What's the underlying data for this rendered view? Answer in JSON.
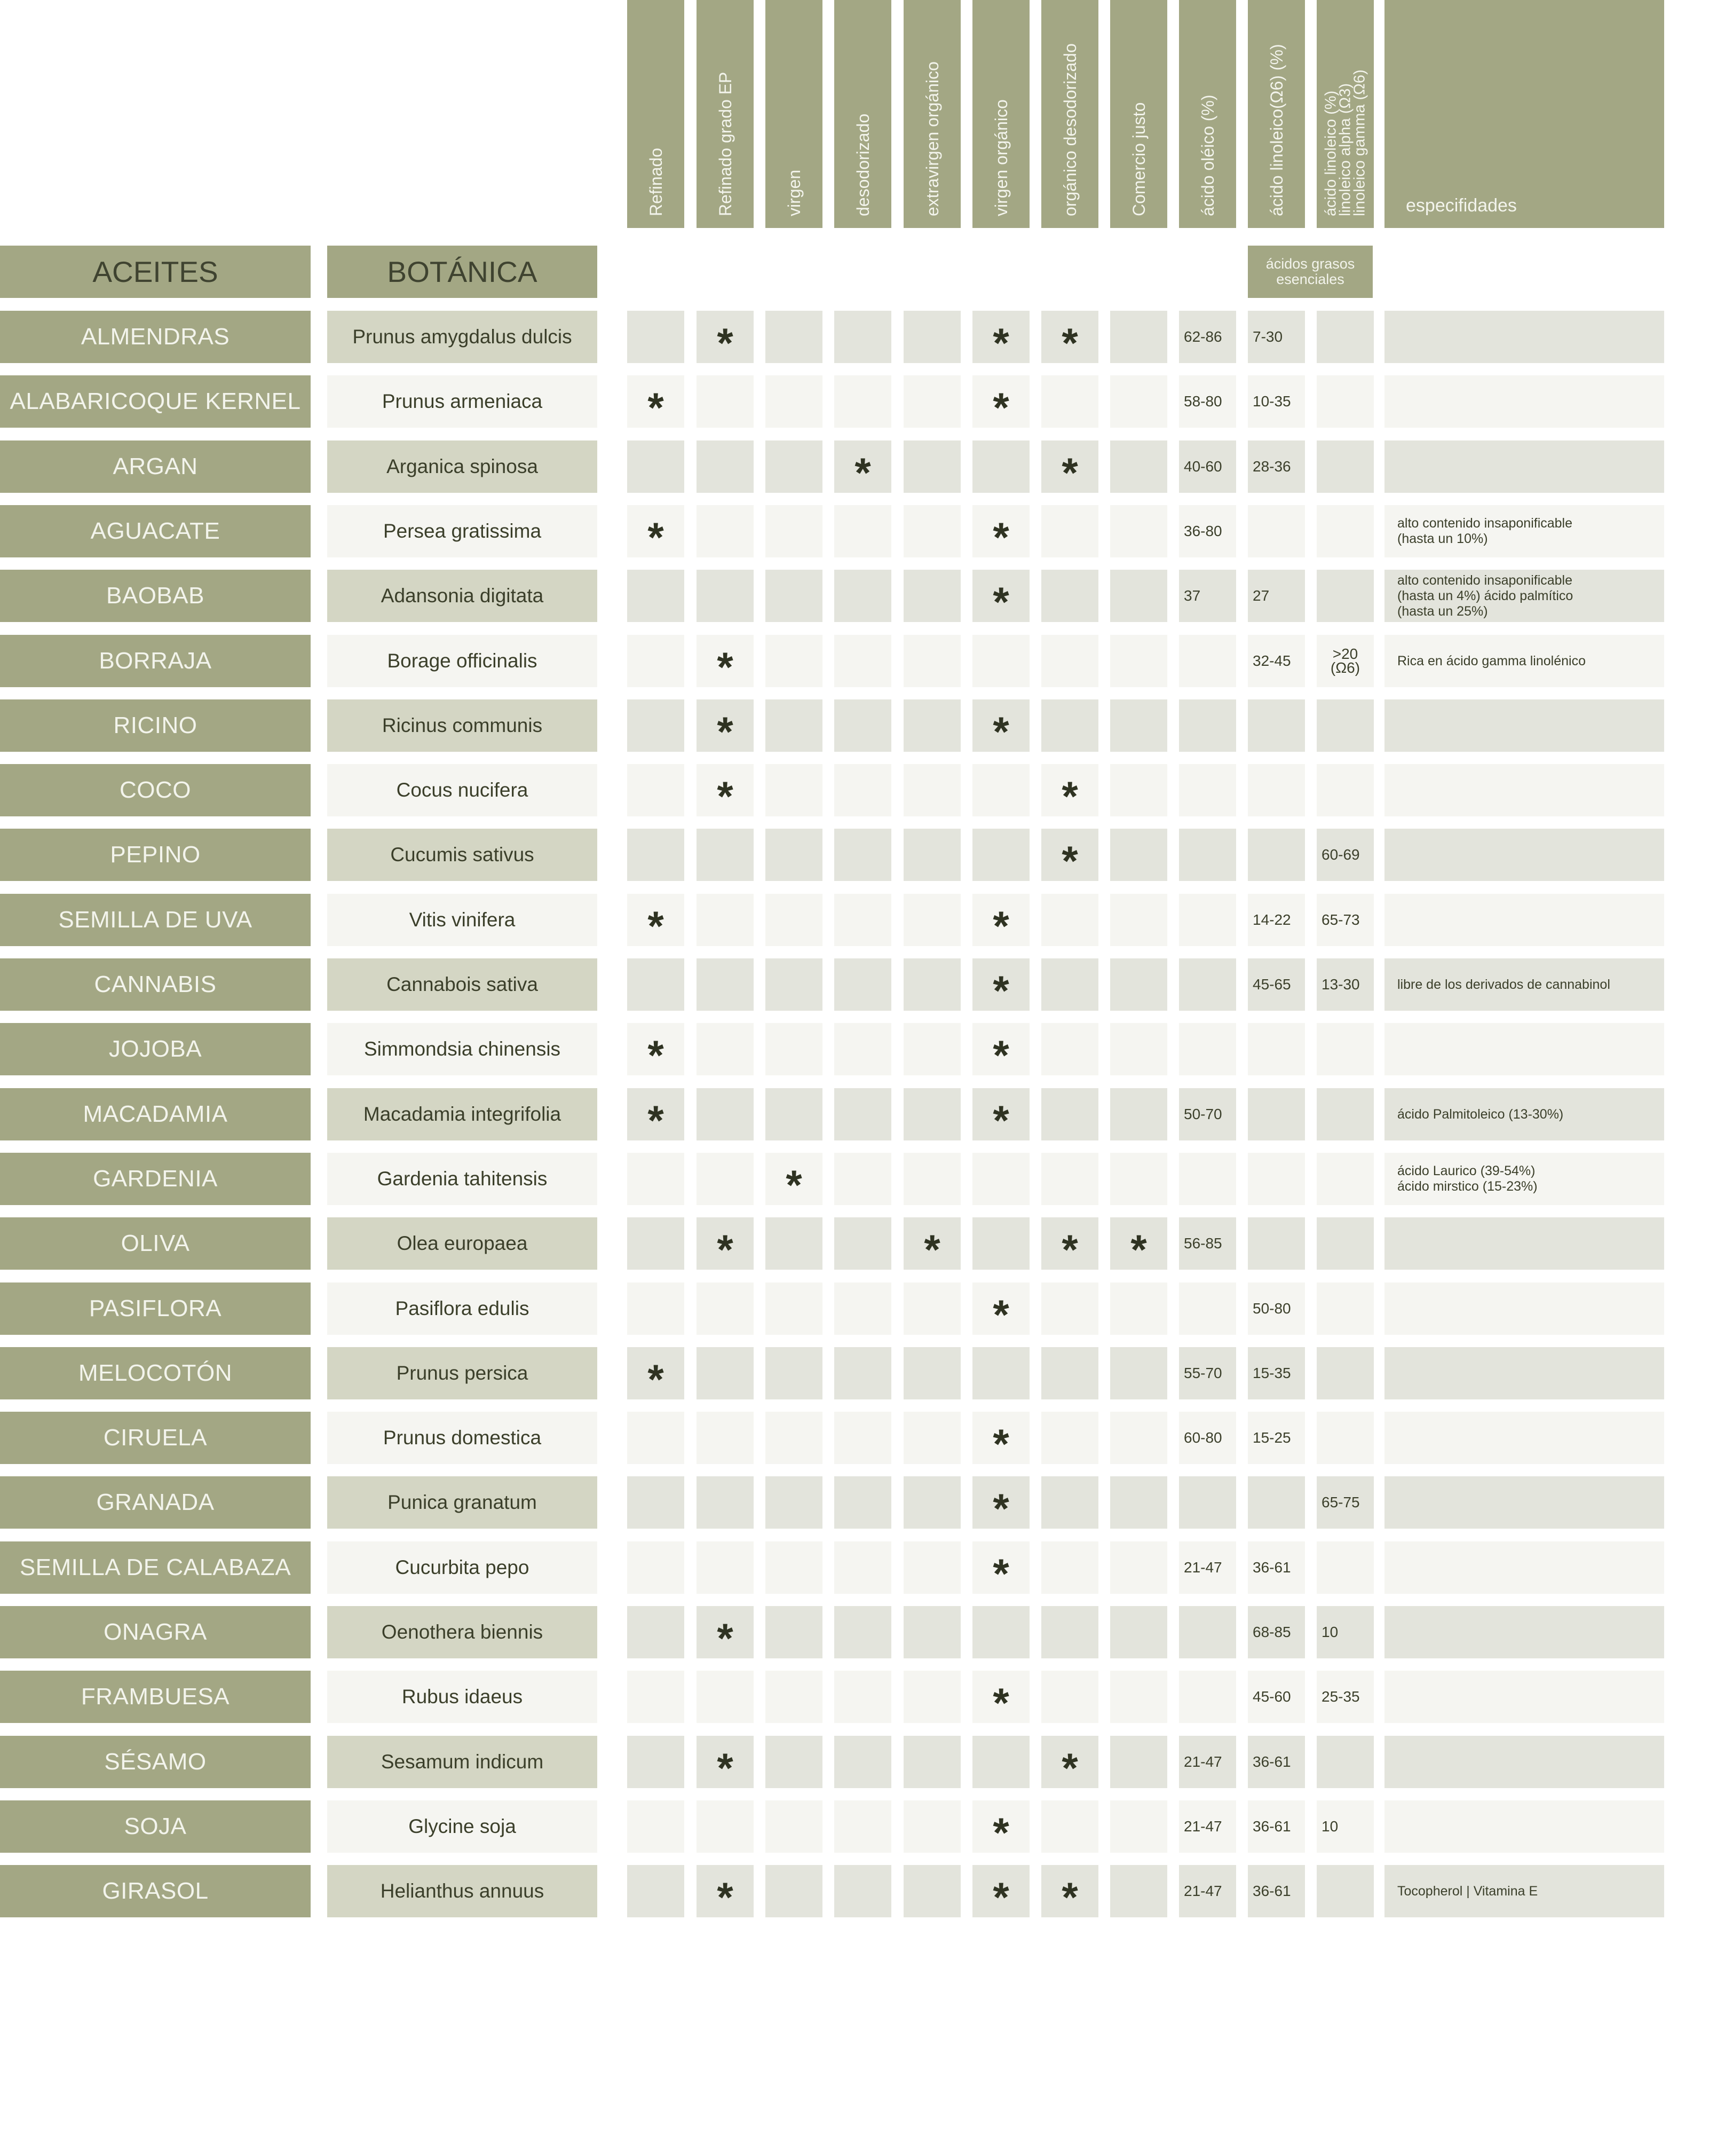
{
  "headers": {
    "columns": [
      "Refinado",
      "Refinado grado EP",
      "virgen",
      "desodorizado",
      "extravirgen orgánico",
      "virgen orgánico",
      "orgánico desodorizado",
      "Comercio justo",
      "ácido oléico (%)",
      "ácido linoleico(Ω6) (%)"
    ],
    "multi_column": [
      "ácido linoleico (%)",
      "linoleico alpha (Ω3)",
      "linoleico gamma (Ω6)"
    ],
    "specs": "especifidades",
    "aceites": "ACEITES",
    "botanica": "BOTÁNICA",
    "efa_1": "ácidos grasos",
    "efa_2": "esenciales"
  },
  "rows": [
    {
      "oil": "ALMENDRAS",
      "botanical": "Prunus amygdalus dulcis",
      "marks": [
        0,
        1,
        0,
        0,
        0,
        1,
        1,
        0
      ],
      "oleic": "62-86",
      "linoleic": "7-30",
      "linoleic3": "",
      "specs": []
    },
    {
      "oil": "ALABARICOQUE KERNEL",
      "botanical": "Prunus armeniaca",
      "marks": [
        1,
        0,
        0,
        0,
        0,
        1,
        0,
        0
      ],
      "oleic": "58-80",
      "linoleic": "10-35",
      "linoleic3": "",
      "specs": []
    },
    {
      "oil": "ARGAN",
      "botanical": "Arganica spinosa",
      "marks": [
        0,
        0,
        0,
        1,
        0,
        0,
        1,
        0
      ],
      "oleic": "40-60",
      "linoleic": "28-36",
      "linoleic3": "",
      "specs": []
    },
    {
      "oil": "AGUACATE",
      "botanical": "Persea gratissima",
      "marks": [
        1,
        0,
        0,
        0,
        0,
        1,
        0,
        0
      ],
      "oleic": "36-80",
      "linoleic": "",
      "linoleic3": "",
      "specs": [
        "alto contenido insaponificable",
        "(hasta un 10%)"
      ]
    },
    {
      "oil": "BAOBAB",
      "botanical": "Adansonia digitata",
      "marks": [
        0,
        0,
        0,
        0,
        0,
        1,
        0,
        0
      ],
      "oleic": "37",
      "linoleic": "27",
      "linoleic3": "",
      "specs": [
        "alto contenido insaponificable",
        "(hasta un 4%) ácido palmítico",
        "(hasta un 25%)"
      ]
    },
    {
      "oil": "BORRAJA",
      "botanical": "Borage officinalis",
      "marks": [
        0,
        1,
        0,
        0,
        0,
        0,
        0,
        0
      ],
      "oleic": "",
      "linoleic": "32-45",
      "linoleic3": ">20\n(Ω6)",
      "specs": [
        "Rica en ácido gamma linolénico"
      ]
    },
    {
      "oil": "RICINO",
      "botanical": "Ricinus communis",
      "marks": [
        0,
        1,
        0,
        0,
        0,
        1,
        0,
        0
      ],
      "oleic": "",
      "linoleic": "",
      "linoleic3": "",
      "specs": []
    },
    {
      "oil": "COCO",
      "botanical": "Cocus nucifera",
      "marks": [
        0,
        1,
        0,
        0,
        0,
        0,
        1,
        0
      ],
      "oleic": "",
      "linoleic": "",
      "linoleic3": "",
      "specs": []
    },
    {
      "oil": "PEPINO",
      "botanical": "Cucumis sativus",
      "marks": [
        0,
        0,
        0,
        0,
        0,
        0,
        1,
        0
      ],
      "oleic": "",
      "linoleic": "",
      "linoleic3": "60-69",
      "specs": []
    },
    {
      "oil": "SEMILLA DE UVA",
      "botanical": "Vitis vinifera",
      "marks": [
        1,
        0,
        0,
        0,
        0,
        1,
        0,
        0
      ],
      "oleic": "",
      "linoleic": "14-22",
      "linoleic3": "65-73",
      "specs": []
    },
    {
      "oil": "CANNABIS",
      "botanical": "Cannabois sativa",
      "marks": [
        0,
        0,
        0,
        0,
        0,
        1,
        0,
        0
      ],
      "oleic": "",
      "linoleic": "45-65",
      "linoleic3": "13-30",
      "specs": [
        "libre de los derivados de cannabinol"
      ]
    },
    {
      "oil": "JOJOBA",
      "botanical": "Simmondsia chinensis",
      "marks": [
        1,
        0,
        0,
        0,
        0,
        1,
        0,
        0
      ],
      "oleic": "",
      "linoleic": "",
      "linoleic3": "",
      "specs": []
    },
    {
      "oil": "MACADAMIA",
      "botanical": "Macadamia integrifolia",
      "marks": [
        1,
        0,
        0,
        0,
        0,
        1,
        0,
        0
      ],
      "oleic": "50-70",
      "linoleic": "",
      "linoleic3": "",
      "specs": [
        "ácido Palmitoleico (13-30%)"
      ]
    },
    {
      "oil": "GARDENIA",
      "botanical": "Gardenia tahitensis",
      "marks": [
        0,
        0,
        1,
        0,
        0,
        0,
        0,
        0
      ],
      "oleic": "",
      "linoleic": "",
      "linoleic3": "",
      "specs": [
        "ácido Laurico (39-54%)",
        "ácido mirstico (15-23%)"
      ]
    },
    {
      "oil": "OLIVA",
      "botanical": "Olea europaea",
      "marks": [
        0,
        1,
        0,
        0,
        1,
        0,
        1,
        1
      ],
      "oleic": "56-85",
      "linoleic": "",
      "linoleic3": "",
      "specs": []
    },
    {
      "oil": "PASIFLORA",
      "botanical": "Pasiflora edulis",
      "marks": [
        0,
        0,
        0,
        0,
        0,
        1,
        0,
        0
      ],
      "oleic": "",
      "linoleic": "50-80",
      "linoleic3": "",
      "specs": []
    },
    {
      "oil": "MELOCOTÓN",
      "botanical": "Prunus persica",
      "marks": [
        1,
        0,
        0,
        0,
        0,
        0,
        0,
        0
      ],
      "oleic": "55-70",
      "linoleic": "15-35",
      "linoleic3": "",
      "specs": []
    },
    {
      "oil": "CIRUELA",
      "botanical": "Prunus domestica",
      "marks": [
        0,
        0,
        0,
        0,
        0,
        1,
        0,
        0
      ],
      "oleic": "60-80",
      "linoleic": "15-25",
      "linoleic3": "",
      "specs": []
    },
    {
      "oil": "GRANADA",
      "botanical": "Punica granatum",
      "marks": [
        0,
        0,
        0,
        0,
        0,
        1,
        0,
        0
      ],
      "oleic": "",
      "linoleic": "",
      "linoleic3": "65-75",
      "specs": []
    },
    {
      "oil": "SEMILLA DE CALABAZA",
      "botanical": "Cucurbita pepo",
      "marks": [
        0,
        0,
        0,
        0,
        0,
        1,
        0,
        0
      ],
      "oleic": "21-47",
      "linoleic": "36-61",
      "linoleic3": "",
      "specs": []
    },
    {
      "oil": "ONAGRA",
      "botanical": "Oenothera biennis",
      "marks": [
        0,
        1,
        0,
        0,
        0,
        0,
        0,
        0
      ],
      "oleic": "",
      "linoleic": "68-85",
      "linoleic3": "10",
      "specs": []
    },
    {
      "oil": "FRAMBUESA",
      "botanical": "Rubus idaeus",
      "marks": [
        0,
        0,
        0,
        0,
        0,
        1,
        0,
        0
      ],
      "oleic": "",
      "linoleic": "45-60",
      "linoleic3": "25-35",
      "specs": []
    },
    {
      "oil": "SÉSAMO",
      "botanical": "Sesamum indicum",
      "marks": [
        0,
        1,
        0,
        0,
        0,
        0,
        1,
        0
      ],
      "oleic": "21-47",
      "linoleic": "36-61",
      "linoleic3": "",
      "specs": []
    },
    {
      "oil": "SOJA",
      "botanical": "Glycine soja",
      "marks": [
        0,
        0,
        0,
        0,
        0,
        1,
        0,
        0
      ],
      "oleic": "21-47",
      "linoleic": "36-61",
      "linoleic3": "10",
      "specs": []
    },
    {
      "oil": "GIRASOL",
      "botanical": "Helianthus annuus",
      "marks": [
        0,
        1,
        0,
        0,
        0,
        1,
        1,
        0
      ],
      "oleic": "21-47",
      "linoleic": "36-61",
      "linoleic3": "",
      "specs": [
        "Tocopherol | Vitamina E"
      ]
    }
  ],
  "mark_symbol": "*",
  "colors": {
    "header": "#a3a784",
    "row_dark": "#e3e4dc",
    "row_light": "#f5f5f1",
    "botanical_dark": "#d4d6c4"
  }
}
